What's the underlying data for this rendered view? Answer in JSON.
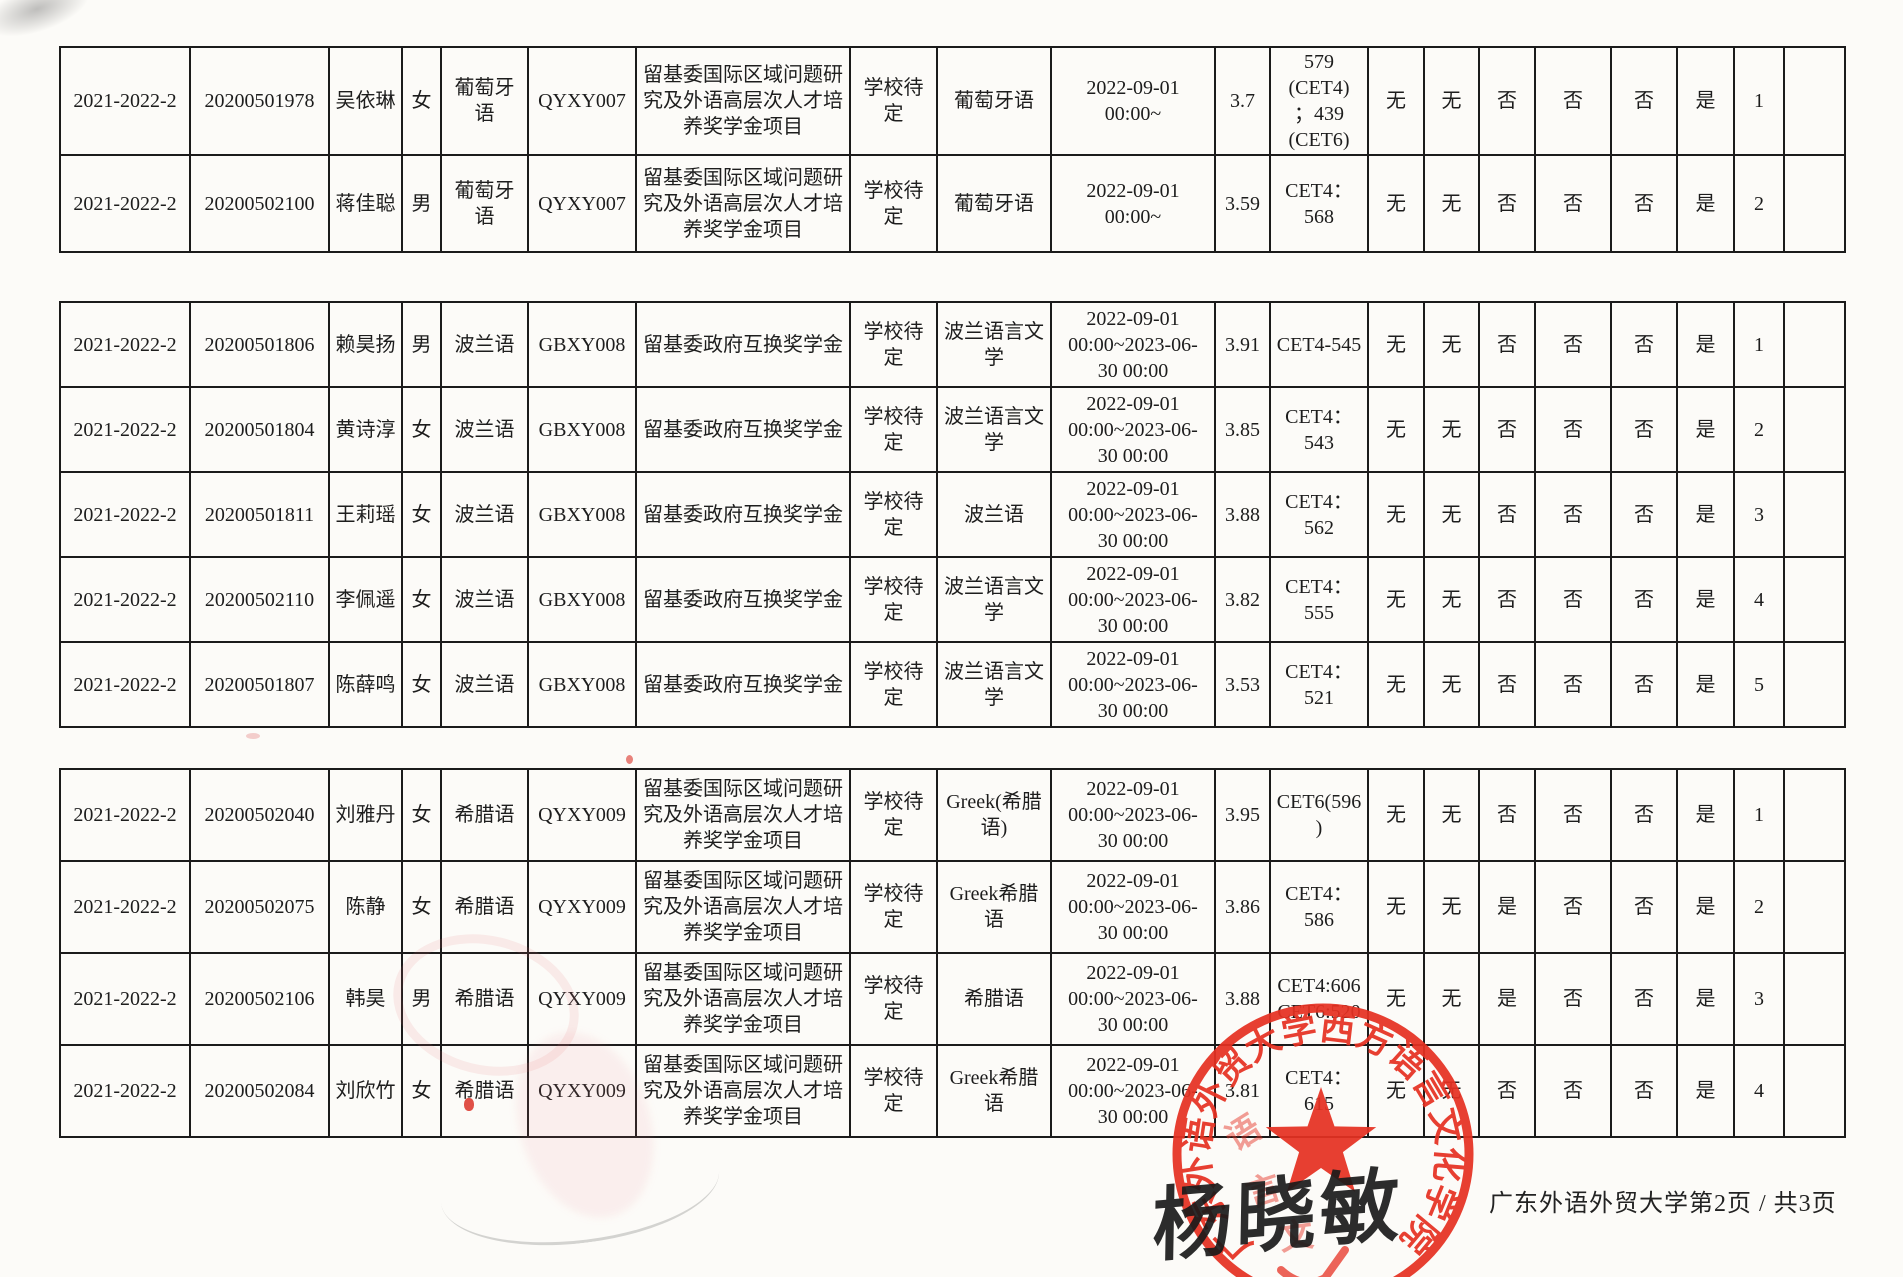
{
  "document": {
    "footer": {
      "text": "广东外语外贸大学第2页 / 共3页"
    },
    "seal": {
      "ring_text": "广东外语外贸大学西方语言文化学院",
      "color": "#e63122",
      "star_icon": "red-star"
    },
    "signature": {
      "text": "杨晓敏"
    }
  },
  "tables": [
    {
      "rows": [
        [
          "2021-2022-2",
          "20200501978",
          "吴依琳",
          "女",
          "葡萄牙\n语",
          "QYXY007",
          "留基委国际区域问题研\n究及外语高层次人才培\n养奖学金项目",
          "学校待\n定",
          "葡萄牙语",
          "2022-09-01\n00:00~",
          "3.7",
          "579\n(CET4)\n；439\n(CET6)",
          "无",
          "无",
          "否",
          "否",
          "否",
          "是",
          "1",
          ""
        ],
        [
          "2021-2022-2",
          "20200502100",
          "蒋佳聪",
          "男",
          "葡萄牙\n语",
          "QYXY007",
          "留基委国际区域问题研\n究及外语高层次人才培\n养奖学金项目",
          "学校待\n定",
          "葡萄牙语",
          "2022-09-01\n00:00~",
          "3.59",
          "CET4：\n568",
          "无",
          "无",
          "否",
          "否",
          "否",
          "是",
          "2",
          ""
        ]
      ]
    },
    {
      "rows": [
        [
          "2021-2022-2",
          "20200501806",
          "赖昊扬",
          "男",
          "波兰语",
          "GBXY008",
          "留基委政府互换奖学金",
          "学校待\n定",
          "波兰语言文\n学",
          "2022-09-01\n00:00~2023-06-\n30 00:00",
          "3.91",
          "CET4-545",
          "无",
          "无",
          "否",
          "否",
          "否",
          "是",
          "1",
          ""
        ],
        [
          "2021-2022-2",
          "20200501804",
          "黄诗淳",
          "女",
          "波兰语",
          "GBXY008",
          "留基委政府互换奖学金",
          "学校待\n定",
          "波兰语言文\n学",
          "2022-09-01\n00:00~2023-06-\n30 00:00",
          "3.85",
          "CET4：\n543",
          "无",
          "无",
          "否",
          "否",
          "否",
          "是",
          "2",
          ""
        ],
        [
          "2021-2022-2",
          "20200501811",
          "王莉瑶",
          "女",
          "波兰语",
          "GBXY008",
          "留基委政府互换奖学金",
          "学校待\n定",
          "波兰语",
          "2022-09-01\n00:00~2023-06-\n30 00:00",
          "3.88",
          "CET4：\n562",
          "无",
          "无",
          "否",
          "否",
          "否",
          "是",
          "3",
          ""
        ],
        [
          "2021-2022-2",
          "20200502110",
          "李佩遥",
          "女",
          "波兰语",
          "GBXY008",
          "留基委政府互换奖学金",
          "学校待\n定",
          "波兰语言文\n学",
          "2022-09-01\n00:00~2023-06-\n30 00:00",
          "3.82",
          "CET4：\n555",
          "无",
          "无",
          "否",
          "否",
          "否",
          "是",
          "4",
          ""
        ],
        [
          "2021-2022-2",
          "20200501807",
          "陈薛鸣",
          "女",
          "波兰语",
          "GBXY008",
          "留基委政府互换奖学金",
          "学校待\n定",
          "波兰语言文\n学",
          "2022-09-01\n00:00~2023-06-\n30 00:00",
          "3.53",
          "CET4：\n521",
          "无",
          "无",
          "否",
          "否",
          "否",
          "是",
          "5",
          ""
        ]
      ]
    },
    {
      "rows": [
        [
          "2021-2022-2",
          "20200502040",
          "刘雅丹",
          "女",
          "希腊语",
          "QYXY009",
          "留基委国际区域问题研\n究及外语高层次人才培\n养奖学金项目",
          "学校待\n定",
          "Greek(希腊\n语)",
          "2022-09-01\n00:00~2023-06-\n30 00:00",
          "3.95",
          "CET6(596\n)",
          "无",
          "无",
          "否",
          "否",
          "否",
          "是",
          "1",
          ""
        ],
        [
          "2021-2022-2",
          "20200502075",
          "陈静",
          "女",
          "希腊语",
          "QYXY009",
          "留基委国际区域问题研\n究及外语高层次人才培\n养奖学金项目",
          "学校待\n定",
          "Greek希腊\n语",
          "2022-09-01\n00:00~2023-06-\n30 00:00",
          "3.86",
          "CET4：\n586",
          "无",
          "无",
          "是",
          "否",
          "否",
          "是",
          "2",
          ""
        ],
        [
          "2021-2022-2",
          "20200502106",
          "韩昊",
          "男",
          "希腊语",
          "QYXY009",
          "留基委国际区域问题研\n究及外语高层次人才培\n养奖学金项目",
          "学校待\n定",
          "希腊语",
          "2022-09-01\n00:00~2023-06-\n30 00:00",
          "3.88",
          "CET4:606\nCET6:520",
          "无",
          "无",
          "是",
          "否",
          "否",
          "是",
          "3",
          ""
        ],
        [
          "2021-2022-2",
          "20200502084",
          "刘欣竹",
          "女",
          "希腊语",
          "QYXY009",
          "留基委国际区域问题研\n究及外语高层次人才培\n养奖学金项目",
          "学校待\n定",
          "Greek希腊\n语",
          "2022-09-01\n00:00~2023-06-\n30 00:00",
          "3.81",
          "CET4：\n615",
          "无",
          "无",
          "否",
          "否",
          "否",
          "是",
          "4",
          ""
        ]
      ]
    }
  ]
}
